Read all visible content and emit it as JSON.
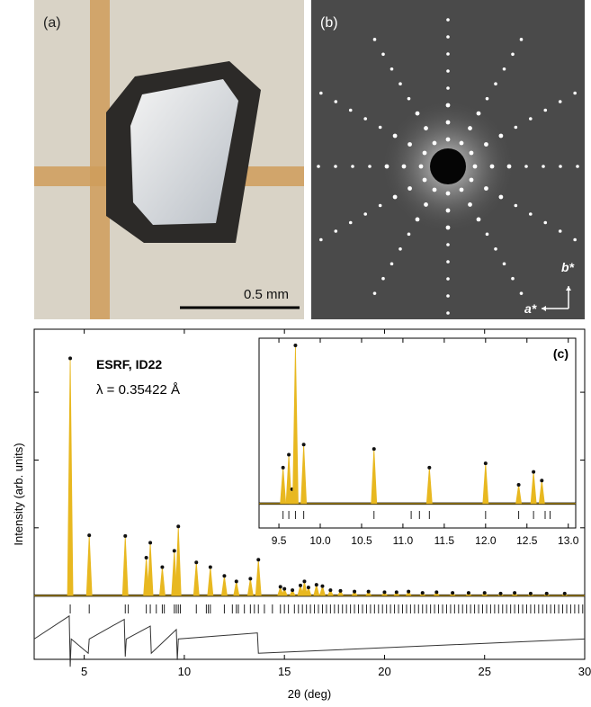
{
  "panels": {
    "a": {
      "label": "(a)",
      "scale_bar": "0.5 mm"
    },
    "b": {
      "label": "(b)",
      "axis_x": "a*",
      "axis_y": "b*"
    }
  },
  "chart_data": [
    {
      "type": "powder",
      "xlabel": "2θ (deg)",
      "ylabel": "Intensity (arb. units)",
      "annotations": [
        "ESRF, ID22",
        "λ = 0.35422 Å"
      ],
      "xlim": [
        2.5,
        30
      ],
      "xticks": [
        5,
        10,
        15,
        20,
        25,
        30
      ],
      "ylim": [
        -0.94,
        3.93
      ],
      "yticks": [
        1,
        2,
        3
      ],
      "color": "#e8b820",
      "x": [
        4.3,
        5.25,
        7.05,
        8.1,
        8.3,
        8.9,
        9.5,
        9.7,
        10.6,
        11.3,
        12.0,
        12.6,
        13.3,
        13.7,
        14.8,
        15.0,
        15.4,
        15.8,
        16.0,
        16.2,
        16.6,
        16.9,
        17.3,
        17.8,
        18.5,
        19.2,
        20.0,
        20.6,
        21.2,
        21.9,
        22.6,
        23.4,
        24.2,
        25.0,
        25.8,
        26.5,
        27.3,
        28.1,
        29.0
      ],
      "values": [
        3.5,
        0.89,
        0.88,
        0.56,
        0.78,
        0.42,
        0.66,
        1.02,
        0.49,
        0.42,
        0.29,
        0.21,
        0.25,
        0.53,
        0.13,
        0.1,
        0.08,
        0.15,
        0.21,
        0.12,
        0.16,
        0.14,
        0.08,
        0.07,
        0.06,
        0.06,
        0.05,
        0.05,
        0.06,
        0.04,
        0.05,
        0.04,
        0.04,
        0.04,
        0.03,
        0.04,
        0.03,
        0.03,
        0.03
      ],
      "reflections": [
        4.3,
        5.25,
        7.05,
        7.2,
        8.1,
        8.3,
        8.6,
        8.9,
        9.0,
        9.5,
        9.6,
        9.7,
        9.8,
        10.6,
        11.1,
        11.2,
        11.3,
        12.0,
        12.4,
        12.6,
        12.7,
        13.0,
        13.3,
        13.5,
        13.7,
        14.0,
        14.4,
        14.8,
        15.0,
        15.2,
        15.5,
        15.7,
        15.9,
        16.1,
        16.3,
        16.5,
        16.7,
        16.9,
        17.1,
        17.3,
        17.5,
        17.7,
        17.9,
        18.1,
        18.3,
        18.5,
        18.7,
        18.9,
        19.1,
        19.3,
        19.5,
        19.7,
        19.9,
        20.1,
        20.3,
        20.5,
        20.7,
        20.9,
        21.1,
        21.3,
        21.5,
        21.7,
        21.9,
        22.1,
        22.3,
        22.5,
        22.7,
        22.9,
        23.1,
        23.3,
        23.5,
        23.7,
        23.9,
        24.1,
        24.3,
        24.5,
        24.7,
        24.9,
        25.1,
        25.3,
        25.5,
        25.7,
        25.9,
        26.1,
        26.3,
        26.5,
        26.7,
        26.9,
        27.1,
        27.3,
        27.5,
        27.7,
        27.9,
        28.1,
        28.3,
        28.5,
        28.7,
        28.9,
        29.1,
        29.3,
        29.5,
        29.7,
        29.9
      ],
      "difference": {
        "x": [
          2.5,
          4.25,
          4.3,
          4.35,
          5.2,
          5.25,
          7.0,
          7.05,
          7.1,
          8.3,
          8.35,
          9.6,
          9.65,
          9.7,
          13.65,
          13.7,
          30
        ],
        "values": [
          -0.64,
          -0.3,
          -1.05,
          -0.64,
          -0.85,
          -0.64,
          -0.35,
          -0.9,
          -0.64,
          -0.45,
          -0.85,
          -0.5,
          -0.95,
          -0.64,
          -0.55,
          -0.85,
          -0.64
        ]
      }
    },
    {
      "type": "powder",
      "label": "(c)",
      "xlim": [
        9.26,
        13.09
      ],
      "xticks": [
        9.5,
        {
          "value": 10,
          "label": "10.0"
        },
        10.5,
        {
          "value": 11,
          "label": "11.0"
        },
        11.5,
        {
          "value": 12,
          "label": "12.0"
        },
        12.5,
        {
          "value": 13,
          "label": "13.0"
        }
      ],
      "ylim": [
        -0.17,
        1.15
      ],
      "color": "#e8b820",
      "x": [
        9.55,
        9.62,
        9.66,
        9.7,
        9.8,
        10.65,
        11.32,
        12.0,
        12.4,
        12.58,
        12.68
      ],
      "values": [
        0.25,
        0.34,
        0.1,
        1.1,
        0.41,
        0.38,
        0.25,
        0.28,
        0.13,
        0.22,
        0.16
      ],
      "reflections": [
        9.55,
        9.62,
        9.7,
        9.8,
        10.65,
        11.1,
        11.2,
        11.32,
        12.0,
        12.4,
        12.58,
        12.72,
        12.78
      ]
    }
  ]
}
